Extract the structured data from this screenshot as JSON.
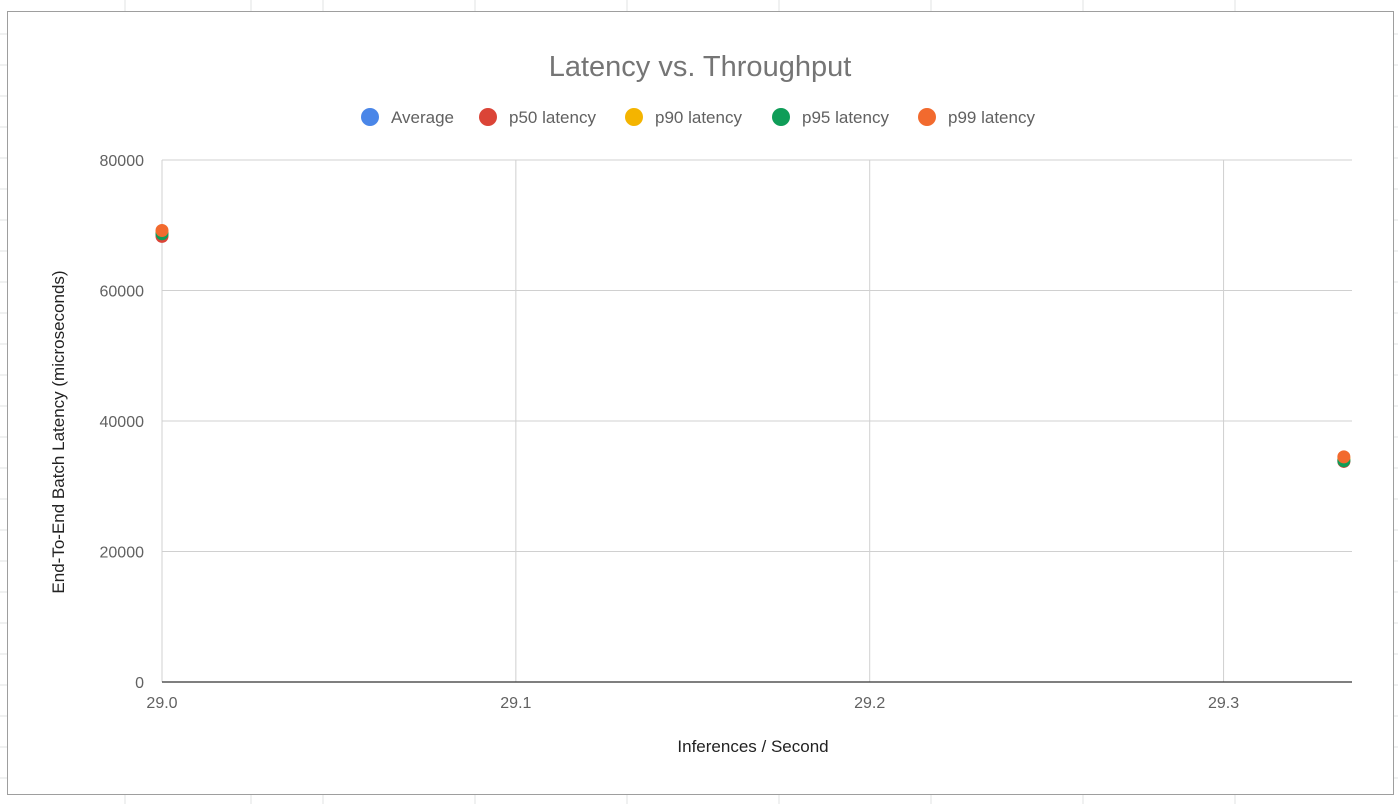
{
  "colors": {
    "Average": "#4a86e8",
    "p50 latency": "#db4437",
    "p90 latency": "#f4b400",
    "p95 latency": "#0f9d58",
    "p99 latency": "#f26a2e",
    "grid": "#d0d0d0",
    "axis": "#333333"
  },
  "chart_data": {
    "type": "scatter",
    "title": "Latency vs. Throughput",
    "xlabel": "Inferences / Second",
    "ylabel": "End-To-End Batch Latency (microseconds)",
    "xlim": [
      29.0,
      29.3363
    ],
    "ylim": [
      0,
      80000
    ],
    "xticks": [
      "29.0",
      "29.1",
      "29.2",
      "29.3"
    ],
    "yticks": [
      "0",
      "20000",
      "40000",
      "60000",
      "80000"
    ],
    "legend_position": "top",
    "grid": true,
    "series": [
      {
        "name": "Average",
        "points": [
          [
            29.0,
            68600
          ],
          [
            29.334,
            34000
          ]
        ]
      },
      {
        "name": "p50 latency",
        "points": [
          [
            29.0,
            68300
          ],
          [
            29.334,
            33800
          ]
        ]
      },
      {
        "name": "p90 latency",
        "points": [
          [
            29.0,
            68900
          ],
          [
            29.334,
            34200
          ]
        ]
      },
      {
        "name": "p95 latency",
        "points": [
          [
            29.0,
            68700
          ],
          [
            29.334,
            33900
          ]
        ]
      },
      {
        "name": "p99 latency",
        "points": [
          [
            29.0,
            69200
          ],
          [
            29.334,
            34500
          ]
        ]
      }
    ]
  }
}
